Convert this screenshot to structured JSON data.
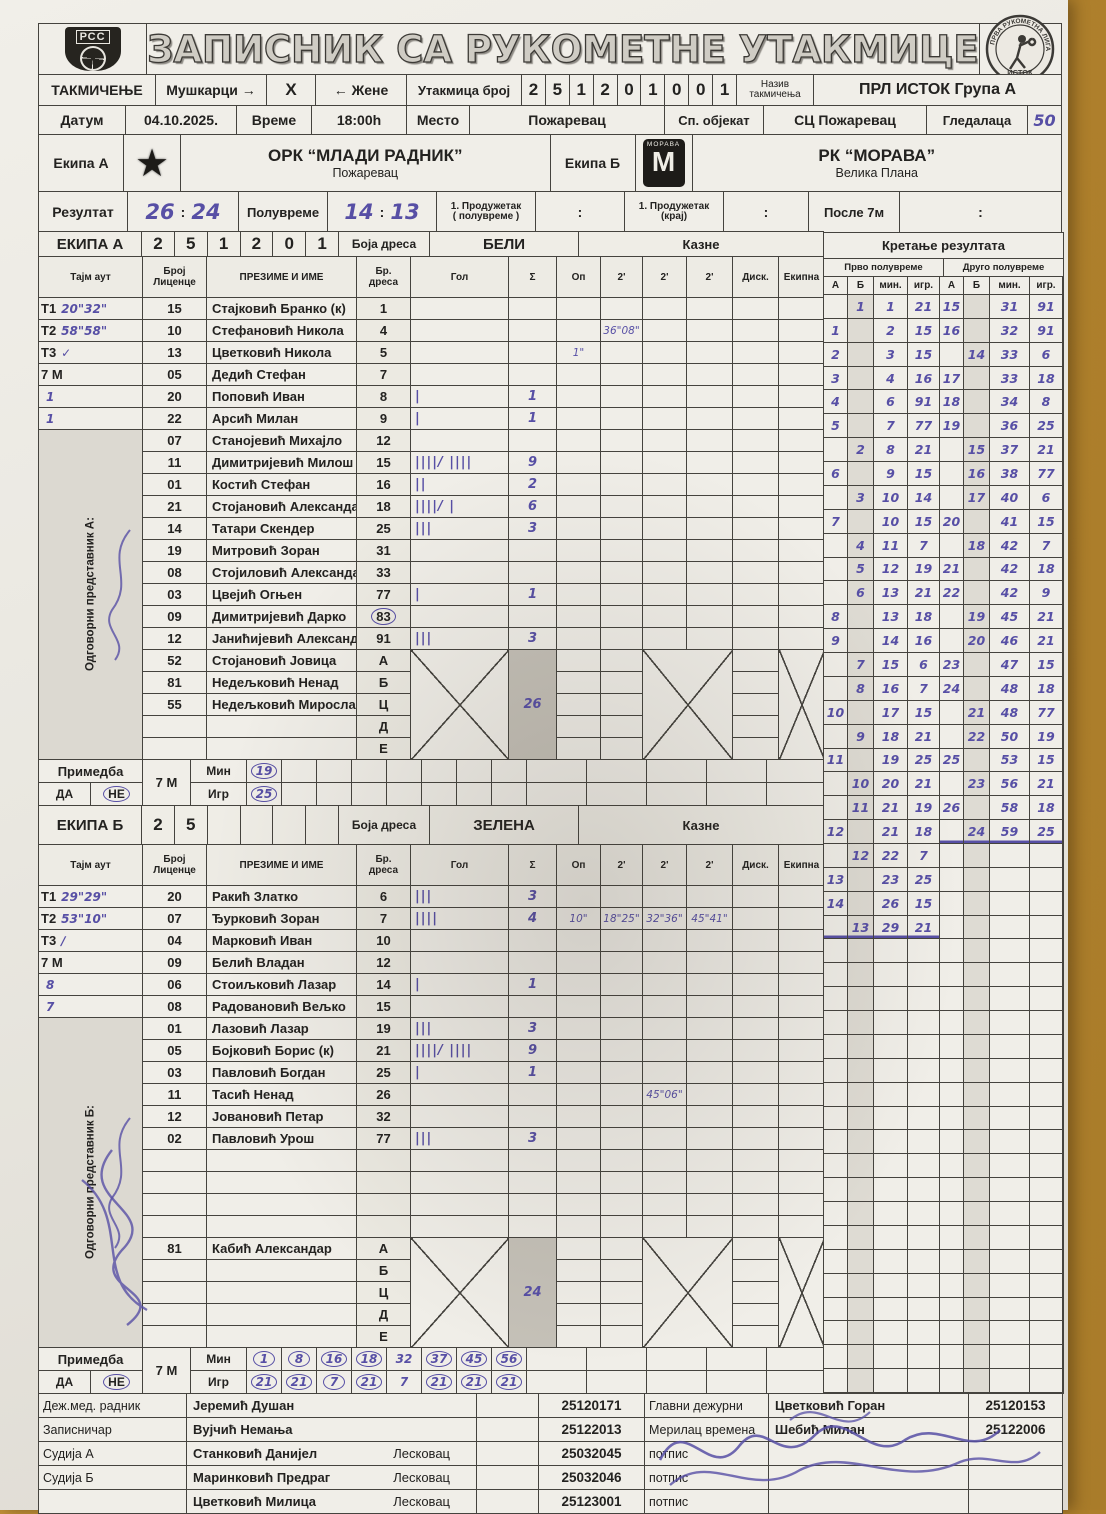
{
  "header": {
    "title": "ЗАПИСНИК СА РУКОМЕТНЕ УТАКМИЦЕ",
    "left_logo_text": "РСС",
    "right_logo_arc": "ПРВА РУКОМЕТНА ЛИГА",
    "right_logo_bottom": "ИСТОК"
  },
  "competition": {
    "label": "ТАКМИЧЕЊЕ",
    "men": "Мушкарци",
    "arrow_right": "→",
    "x_mark": "X",
    "arrow_left": "←",
    "women": "Жене",
    "match_label": "Утакмица број",
    "match_digits": [
      "2",
      "5",
      "1",
      "2",
      "0",
      "1",
      "0",
      "0",
      "1"
    ],
    "name_label": "Назив\nтакмичења",
    "name": "ПРЛ ИСТОК Група А"
  },
  "info": {
    "date_label": "Датум",
    "date": "04.10.2025.",
    "time_label": "Време",
    "time": "18:00h",
    "place_label": "Место",
    "place": "Пожаревац",
    "venue_label": "Сп. објекат",
    "venue": "СЦ Пожаревац",
    "spectators_label": "Гледалаца",
    "spectators": "50"
  },
  "teams": {
    "a_label": "Екипа А",
    "a_name": "ОРК “МЛАДИ РАДНИК”",
    "a_city": "Пожаревац",
    "b_label": "Екипа Б",
    "b_name": "РК “МОРАВА”",
    "b_city": "Велика Плана",
    "b_logo_text": "МОРАВА",
    "b_logo_m": "М"
  },
  "result": {
    "label": "Резултат",
    "a": "26",
    "b": "24",
    "colon": ":",
    "half_label": "Полувреме",
    "half_a": "14",
    "half_b": "13",
    "ot1_label": "1. Продужетак\n( полувреме )",
    "ot2_label": "1. Продужетак\n(крај)",
    "after7_label": "После 7м"
  },
  "table_columns": [
    "Тајм аут",
    "Број\nЛиценце",
    "ПРЕЗИМЕ И ИМЕ",
    "Бр.\nдреса",
    "Гол",
    "Σ",
    "Оп",
    "2'",
    "2'",
    "2'",
    "Диск.",
    "Екипна"
  ],
  "team_a": {
    "band": {
      "title": "ЕКИПА А",
      "digits": [
        "2",
        "5",
        "1",
        "2",
        "0",
        "1"
      ],
      "jersey_label": "Боја дреса",
      "jersey": "БЕЛИ",
      "kazne": "Казне"
    },
    "rep_label": "Одговорни представник А:",
    "players": [
      {
        "tl": "Т1",
        "tv": "20\"32\"",
        "lic": "15",
        "name": "Стајковић Бранко (к)",
        "j": "1"
      },
      {
        "tl": "Т2",
        "tv": "58\"58\"",
        "lic": "10",
        "name": "Стефановић Никола",
        "j": "4",
        "t1": "36\"08\""
      },
      {
        "tl": "Т3",
        "tv": "✓",
        "lic": "13",
        "name": "Цветковић Никола",
        "j": "5",
        "op": "1\""
      },
      {
        "tl": "7 М",
        "tv": "",
        "lic": "05",
        "name": "Дедић Стефан",
        "j": "7"
      },
      {
        "tv": "1",
        "lic": "20",
        "name": "Поповић Иван",
        "j": "8",
        "g": "|",
        "s": "1"
      },
      {
        "tv": "1",
        "lic": "22",
        "name": "Арсић Милан",
        "j": "9",
        "g": "|",
        "s": "1"
      },
      {
        "lic": "07",
        "name": "Станојевић Михајло",
        "j": "12"
      },
      {
        "lic": "11",
        "name": "Димитријевић Милош",
        "j": "15",
        "g": "||||/ ||||",
        "s": "9"
      },
      {
        "lic": "01",
        "name": "Костић Стефан",
        "j": "16",
        "g": "||",
        "s": "2"
      },
      {
        "lic": "21",
        "name": "Стојановић Александар",
        "j": "18",
        "g": "||||/ |",
        "s": "6"
      },
      {
        "lic": "14",
        "name": "Татари Скендер",
        "j": "25",
        "g": "|||",
        "s": "3"
      },
      {
        "lic": "19",
        "name": "Митровић Зоран",
        "j": "31"
      },
      {
        "lic": "08",
        "name": "Стојиловић Александар",
        "j": "33"
      },
      {
        "lic": "03",
        "name": "Цвејић Огњен",
        "j": "77",
        "g": "|",
        "s": "1"
      },
      {
        "lic": "09",
        "name": "Димитријевић Дарко",
        "j": "83",
        "jc": true
      },
      {
        "lic": "12",
        "name": "Јанићијевић Александар",
        "j": "91",
        "g": "|||",
        "s": "3"
      }
    ],
    "officials": [
      {
        "lic": "52",
        "name": "Стојановић Јовица",
        "letter": "А"
      },
      {
        "lic": "81",
        "name": "Недељковић Ненад",
        "letter": "Б"
      },
      {
        "lic": "55",
        "name": "Недељковић Мирослав",
        "letter": "Ц"
      },
      {
        "lic": "",
        "name": "",
        "letter": "Д"
      },
      {
        "lic": "",
        "name": "",
        "letter": "Е"
      }
    ],
    "total": "26",
    "remark": {
      "label": "Примедба",
      "yes": "ДА",
      "no": "НЕ",
      "no_circled": true,
      "sevenm": "7 М",
      "min_label": "Мин",
      "igr_label": "Игр",
      "min": [
        "19",
        "",
        "",
        "",
        "",
        "",
        "",
        ""
      ],
      "min_circled": [
        true,
        false,
        false,
        false,
        false,
        false,
        false,
        false
      ],
      "igr": [
        "25",
        "",
        "",
        "",
        "",
        "",
        "",
        ""
      ],
      "igr_circled": [
        true,
        false,
        false,
        false,
        false,
        false,
        false,
        false
      ]
    }
  },
  "team_b": {
    "band": {
      "title": "ЕКИПА Б",
      "digits": [
        "2",
        "5",
        "",
        "",
        "",
        ""
      ],
      "jersey_label": "Боја дреса",
      "jersey": "ЗЕЛЕНА",
      "kazne": "Казне"
    },
    "rep_label": "Одговорни представник Б:",
    "players": [
      {
        "tl": "Т1",
        "tv": "29\"29\"",
        "lic": "20",
        "name": "Ракић Златко",
        "j": "6",
        "g": "|||",
        "s": "3"
      },
      {
        "tl": "Т2",
        "tv": "53\"10\"",
        "lic": "07",
        "name": "Ђурковић Зоран",
        "j": "7",
        "g": "||||",
        "s": "4",
        "op": "10\"",
        "t1": "18\"25\"",
        "t2": "32\"36\"",
        "t3": "45\"41\""
      },
      {
        "tl": "Т3",
        "tv": "∕",
        "lic": "04",
        "name": "Марковић Иван",
        "j": "10"
      },
      {
        "tl": "7 М",
        "tv": "",
        "lic": "09",
        "name": "Белић Владан",
        "j": "12"
      },
      {
        "tv": "8",
        "lic": "06",
        "name": "Стоиљковић Лазар",
        "j": "14",
        "g": "|",
        "s": "1"
      },
      {
        "tv": "7",
        "lic": "08",
        "name": "Радовановић Вељко",
        "j": "15"
      },
      {
        "lic": "01",
        "name": "Лазовић Лазар",
        "j": "19",
        "g": "|||",
        "s": "3"
      },
      {
        "lic": "05",
        "name": "Бојковић Борис (к)",
        "j": "21",
        "g": "||||/ ||||",
        "s": "9"
      },
      {
        "lic": "03",
        "name": "Павловић Богдан",
        "j": "25",
        "g": "|",
        "s": "1"
      },
      {
        "lic": "11",
        "name": "Тасић Ненад",
        "j": "26",
        "t2": "45\"06\""
      },
      {
        "lic": "12",
        "name": "Јовановић Петар",
        "j": "32"
      },
      {
        "lic": "02",
        "name": "Павловић Урош",
        "j": "77",
        "g": "|||",
        "s": "3"
      },
      {
        "lic": "",
        "name": "",
        "j": ""
      },
      {
        "lic": "",
        "name": "",
        "j": ""
      },
      {
        "lic": "",
        "name": "",
        "j": ""
      },
      {
        "lic": "",
        "name": "",
        "j": ""
      }
    ],
    "officials": [
      {
        "lic": "81",
        "name": "Кабић Александар",
        "letter": "А"
      },
      {
        "lic": "",
        "name": "",
        "letter": "Б"
      },
      {
        "lic": "",
        "name": "",
        "letter": "Ц"
      },
      {
        "lic": "",
        "name": "",
        "letter": "Д"
      },
      {
        "lic": "",
        "name": "",
        "letter": "Е"
      }
    ],
    "total": "24",
    "remark": {
      "label": "Примедба",
      "yes": "ДА",
      "no": "НЕ",
      "no_circled": true,
      "sevenm": "7 М",
      "min_label": "Мин",
      "igr_label": "Игр",
      "min": [
        "1",
        "8",
        "16",
        "18",
        "32",
        "37",
        "45",
        "56"
      ],
      "min_circled": [
        true,
        true,
        true,
        true,
        false,
        true,
        true,
        true
      ],
      "igr": [
        "21",
        "21",
        "7",
        "21",
        "7",
        "21",
        "21",
        "21"
      ],
      "igr_circled": [
        true,
        true,
        true,
        true,
        false,
        true,
        true,
        true
      ]
    }
  },
  "score_track": {
    "title": "Кретање резултата",
    "half1": "Прво полувреме",
    "half2": "Друго полувреме",
    "cols": [
      "А",
      "Б",
      "мин.",
      "игр.",
      "А",
      "Б",
      "мин.",
      "игр."
    ],
    "total_rows": 46,
    "underline_first_half_row": 27,
    "underline_second_half_row": 23,
    "rows": [
      [
        "",
        "1",
        "1",
        "21",
        "15",
        "",
        "31",
        "91"
      ],
      [
        "1",
        "",
        "2",
        "15",
        "16",
        "",
        "32",
        "91"
      ],
      [
        "2",
        "",
        "3",
        "15",
        "",
        "14",
        "33",
        "6"
      ],
      [
        "3",
        "",
        "4",
        "16",
        "17",
        "",
        "33",
        "18"
      ],
      [
        "4",
        "",
        "6",
        "91",
        "18",
        "",
        "34",
        "8"
      ],
      [
        "5",
        "",
        "7",
        "77",
        "19",
        "",
        "36",
        "25"
      ],
      [
        "",
        "2",
        "8",
        "21",
        "",
        "15",
        "37",
        "21"
      ],
      [
        "6",
        "",
        "9",
        "15",
        "",
        "16",
        "38",
        "77"
      ],
      [
        "",
        "3",
        "10",
        "14",
        "",
        "17",
        "40",
        "6"
      ],
      [
        "7",
        "",
        "10",
        "15",
        "20",
        "",
        "41",
        "15"
      ],
      [
        "",
        "4",
        "11",
        "7",
        "",
        "18",
        "42",
        "7"
      ],
      [
        "",
        "5",
        "12",
        "19",
        "21",
        "",
        "42",
        "18"
      ],
      [
        "",
        "6",
        "13",
        "21",
        "22",
        "",
        "42",
        "9"
      ],
      [
        "8",
        "",
        "13",
        "18",
        "",
        "19",
        "45",
        "21"
      ],
      [
        "9",
        "",
        "14",
        "16",
        "",
        "20",
        "46",
        "21"
      ],
      [
        "",
        "7",
        "15",
        "6",
        "23",
        "",
        "47",
        "15"
      ],
      [
        "",
        "8",
        "16",
        "7",
        "24",
        "",
        "48",
        "18"
      ],
      [
        "10",
        "",
        "17",
        "15",
        "",
        "21",
        "48",
        "77"
      ],
      [
        "",
        "9",
        "18",
        "21",
        "",
        "22",
        "50",
        "19"
      ],
      [
        "11",
        "",
        "19",
        "25",
        "25",
        "",
        "53",
        "15"
      ],
      [
        "",
        "10",
        "20",
        "21",
        "",
        "23",
        "56",
        "21"
      ],
      [
        "",
        "11",
        "21",
        "19",
        "26",
        "",
        "58",
        "18"
      ],
      [
        "12",
        "",
        "21",
        "18",
        "",
        "24",
        "59",
        "25"
      ],
      [
        "",
        "12",
        "22",
        "7",
        "",
        "",
        "",
        ""
      ],
      [
        "13",
        "",
        "23",
        "25",
        "",
        "",
        "",
        ""
      ],
      [
        "14",
        "",
        "26",
        "15",
        "",
        "",
        "",
        ""
      ],
      [
        "",
        "13",
        "29",
        "21",
        "",
        "",
        "",
        ""
      ]
    ]
  },
  "bottom": {
    "rows": [
      {
        "label": "Деж.мед. радник",
        "name": "Јеремић Душан",
        "city": "",
        "lic": "25120171",
        "rlabel": "Главни дежурни",
        "rname": "Цветковић Горан",
        "rlic": "25120153"
      },
      {
        "label": "Записничар",
        "name": "Вујчић Немања",
        "city": "",
        "lic": "25122013",
        "rlabel": "Мерилац времена",
        "rname": "Шебић Милан",
        "rlic": "25122006"
      },
      {
        "label": "Судија А",
        "name": "Станковић Данијел",
        "city": "Лесковац",
        "lic": "25032045",
        "rlabel": "потпис",
        "rname": "",
        "rlic": ""
      },
      {
        "label": "Судија Б",
        "name": "Маринковић Предраг",
        "city": "Лесковац",
        "lic": "25032046",
        "rlabel": "потпис",
        "rname": "",
        "rlic": ""
      },
      {
        "label": "",
        "name": "Цветковић Милица",
        "city": "Лесковац",
        "lic": "25123001",
        "rlabel": "потпис",
        "rname": "",
        "rlic": ""
      }
    ]
  }
}
